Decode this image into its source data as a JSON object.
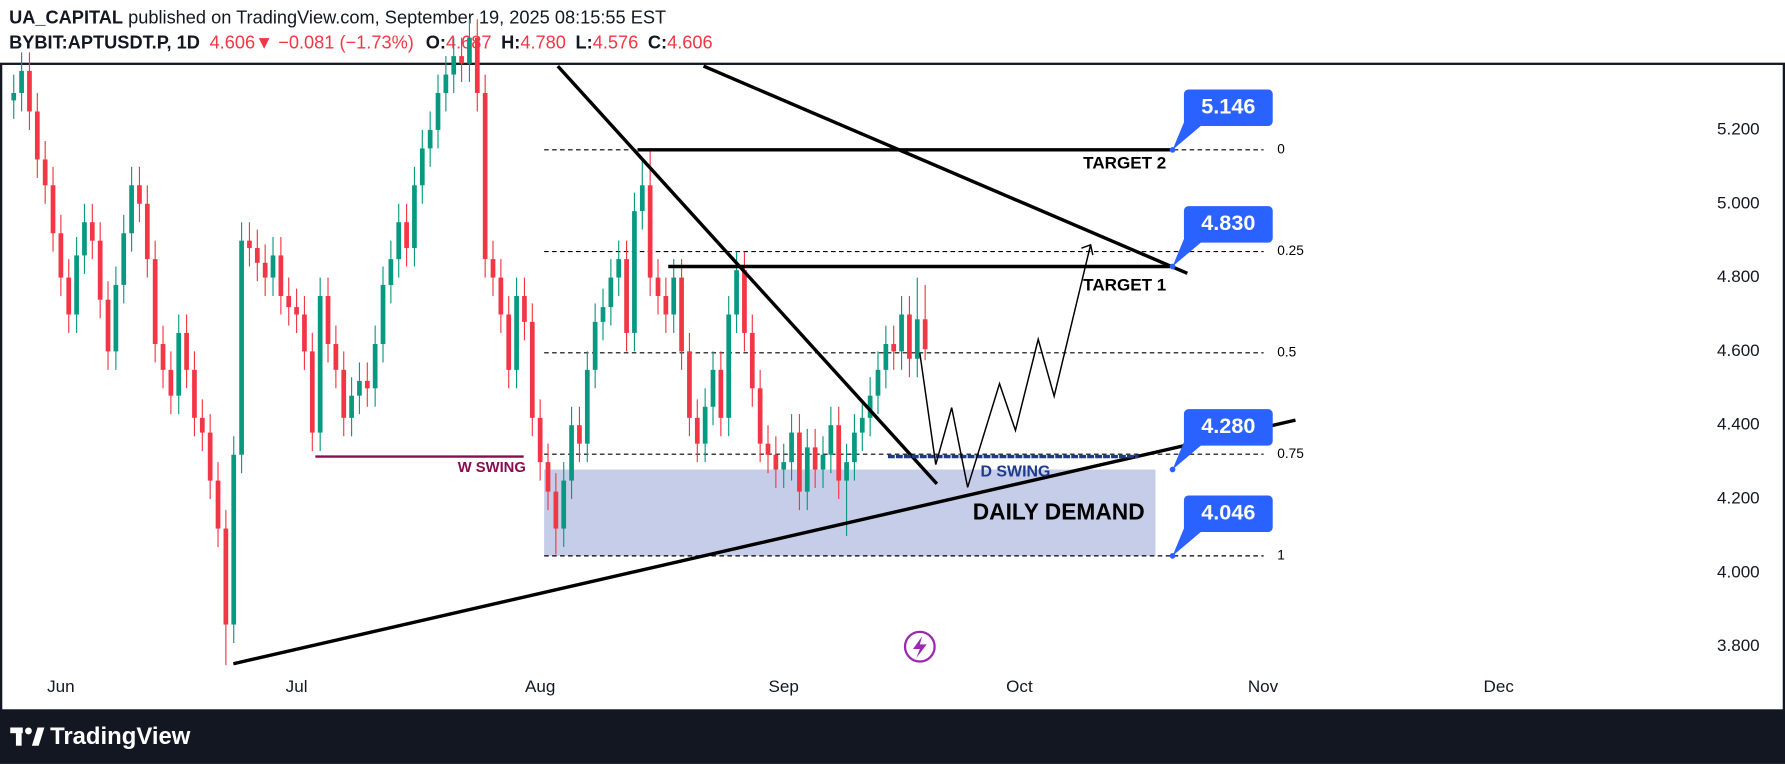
{
  "header": {
    "author": "UA_CAPITAL",
    "published": "published on TradingView.com, September 19, 2025 08:15:55 EST",
    "symbol": "BYBIT:APTUSDT.P, 1D",
    "last": "4.606",
    "arrow": "▼",
    "change": "−0.081 (−1.73%)",
    "ohlc": [
      {
        "label": "O:",
        "value": "4.687"
      },
      {
        "label": "H:",
        "value": "4.780"
      },
      {
        "label": "L:",
        "value": "4.576"
      },
      {
        "label": "C:",
        "value": "4.606"
      }
    ]
  },
  "chart_data": {
    "type": "candlestick",
    "up_color": "#089981",
    "down_color": "#f23645",
    "open": [
      5.28,
      5.3,
      5.36,
      5.25,
      5.12,
      5.05,
      4.92,
      4.8,
      4.7,
      4.86,
      4.95,
      4.9,
      4.74,
      4.6,
      4.78,
      4.92,
      5.05,
      5.0,
      4.85,
      4.62,
      4.55,
      4.48,
      4.65,
      4.55,
      4.42,
      4.38,
      4.25,
      4.12,
      3.86,
      4.32,
      4.9,
      4.88,
      4.84,
      4.8,
      4.86,
      4.75,
      4.72,
      4.7,
      4.6,
      4.38,
      4.75,
      4.62,
      4.55,
      4.42,
      4.48,
      4.52,
      4.5,
      4.62,
      4.78,
      4.85,
      4.95,
      4.88,
      5.05,
      5.15,
      5.2,
      5.3,
      5.35,
      5.4,
      5.38,
      5.45,
      5.3,
      4.85,
      4.8,
      4.7,
      4.55,
      4.75,
      4.68,
      4.42,
      4.3,
      4.22,
      4.12,
      4.25,
      4.4,
      4.35,
      4.55,
      4.68,
      4.72,
      4.8,
      4.85,
      4.65,
      4.98,
      5.05,
      4.8,
      4.75,
      4.7,
      4.8,
      4.6,
      4.42,
      4.35,
      4.45,
      4.55,
      4.42,
      4.7,
      4.82,
      4.65,
      4.5,
      4.35,
      4.32,
      4.28,
      4.3,
      4.38,
      4.22,
      4.34,
      4.28,
      4.32,
      4.4,
      4.25,
      4.3,
      4.38,
      4.42,
      4.48,
      4.55,
      4.62,
      4.6,
      4.7,
      4.58,
      4.687
    ],
    "high": [
      5.35,
      5.41,
      5.41,
      5.3,
      5.17,
      5.1,
      4.97,
      4.85,
      4.91,
      5.0,
      5.0,
      4.95,
      4.79,
      4.83,
      4.97,
      5.1,
      5.1,
      5.05,
      4.9,
      4.67,
      4.6,
      4.7,
      4.7,
      4.6,
      4.47,
      4.43,
      4.3,
      4.17,
      4.37,
      4.95,
      4.95,
      4.93,
      4.89,
      4.91,
      4.91,
      4.8,
      4.77,
      4.75,
      4.65,
      4.8,
      4.8,
      4.67,
      4.6,
      4.53,
      4.57,
      4.57,
      4.67,
      4.83,
      4.9,
      5.0,
      5.0,
      5.1,
      5.2,
      5.25,
      5.35,
      5.4,
      5.45,
      5.45,
      5.5,
      5.5,
      5.35,
      4.9,
      4.85,
      4.75,
      4.8,
      4.8,
      4.73,
      4.47,
      4.35,
      4.27,
      4.3,
      4.45,
      4.45,
      4.6,
      4.73,
      4.77,
      4.85,
      4.9,
      4.9,
      5.03,
      5.12,
      5.15,
      4.85,
      4.8,
      4.85,
      4.85,
      4.65,
      4.47,
      4.5,
      4.6,
      4.6,
      4.75,
      4.87,
      4.87,
      4.7,
      4.55,
      4.4,
      4.37,
      4.35,
      4.43,
      4.43,
      4.39,
      4.39,
      4.37,
      4.45,
      4.45,
      4.35,
      4.43,
      4.47,
      4.53,
      4.6,
      4.67,
      4.67,
      4.75,
      4.75,
      4.8,
      4.78
    ],
    "low": [
      5.23,
      5.25,
      5.2,
      5.07,
      5.0,
      4.87,
      4.75,
      4.65,
      4.65,
      4.81,
      4.85,
      4.69,
      4.55,
      4.55,
      4.73,
      4.87,
      4.95,
      4.8,
      4.57,
      4.5,
      4.43,
      4.43,
      4.5,
      4.37,
      4.33,
      4.2,
      4.07,
      3.75,
      3.81,
      4.27,
      4.83,
      4.79,
      4.75,
      4.75,
      4.7,
      4.67,
      4.65,
      4.55,
      4.33,
      4.33,
      4.57,
      4.5,
      4.37,
      4.37,
      4.43,
      4.45,
      4.45,
      4.57,
      4.73,
      4.8,
      4.83,
      4.83,
      5.0,
      5.1,
      5.15,
      5.25,
      5.3,
      5.33,
      5.33,
      5.25,
      4.8,
      4.75,
      4.65,
      4.5,
      4.5,
      4.63,
      4.37,
      4.25,
      4.17,
      4.05,
      4.07,
      4.2,
      4.3,
      4.3,
      4.5,
      4.63,
      4.67,
      4.75,
      4.6,
      4.6,
      4.93,
      4.75,
      4.7,
      4.65,
      4.65,
      4.55,
      4.37,
      4.3,
      4.3,
      4.4,
      4.37,
      4.37,
      4.65,
      4.6,
      4.45,
      4.3,
      4.27,
      4.23,
      4.23,
      4.25,
      4.17,
      4.17,
      4.23,
      4.23,
      4.27,
      4.2,
      4.1,
      4.25,
      4.33,
      4.37,
      4.43,
      4.5,
      4.55,
      4.55,
      4.53,
      4.53,
      4.576
    ],
    "close": [
      5.3,
      5.36,
      5.25,
      5.12,
      5.05,
      4.92,
      4.8,
      4.7,
      4.86,
      4.95,
      4.9,
      4.74,
      4.6,
      4.78,
      4.92,
      5.05,
      5.0,
      4.85,
      4.62,
      4.55,
      4.48,
      4.65,
      4.55,
      4.42,
      4.38,
      4.25,
      4.12,
      3.86,
      4.32,
      4.9,
      4.88,
      4.84,
      4.8,
      4.86,
      4.75,
      4.72,
      4.7,
      4.6,
      4.38,
      4.75,
      4.62,
      4.55,
      4.42,
      4.48,
      4.52,
      4.5,
      4.62,
      4.78,
      4.85,
      4.95,
      4.88,
      5.05,
      5.15,
      5.2,
      5.3,
      5.35,
      5.4,
      5.38,
      5.45,
      5.3,
      4.85,
      4.8,
      4.7,
      4.55,
      4.75,
      4.68,
      4.42,
      4.3,
      4.22,
      4.12,
      4.25,
      4.4,
      4.35,
      4.55,
      4.68,
      4.72,
      4.8,
      4.85,
      4.65,
      4.98,
      5.05,
      4.8,
      4.75,
      4.7,
      4.8,
      4.6,
      4.42,
      4.35,
      4.45,
      4.55,
      4.42,
      4.7,
      4.82,
      4.65,
      4.5,
      4.35,
      4.32,
      4.28,
      4.3,
      4.38,
      4.22,
      4.34,
      4.28,
      4.32,
      4.4,
      4.25,
      4.3,
      4.38,
      4.42,
      4.48,
      4.55,
      4.62,
      4.6,
      4.7,
      4.58,
      4.687,
      4.606
    ],
    "xlim": [
      -0.3,
      212.4
    ],
    "xticks": [
      {
        "value": 6,
        "label": "Jun"
      },
      {
        "value": 36,
        "label": "Jul"
      },
      {
        "value": 67,
        "label": "Aug"
      },
      {
        "value": 98,
        "label": "Sep"
      },
      {
        "value": 128,
        "label": "Oct"
      },
      {
        "value": 159,
        "label": "Nov"
      },
      {
        "value": 189,
        "label": "Dec"
      }
    ],
    "ylim": [
      3.726,
      5.376
    ],
    "yticks": [
      {
        "value": 3.8,
        "label": "3.800"
      },
      {
        "value": 4.0,
        "label": "4.000"
      },
      {
        "value": 4.2,
        "label": "4.200"
      },
      {
        "value": 4.4,
        "label": "4.400"
      },
      {
        "value": 4.6,
        "label": "4.600"
      },
      {
        "value": 4.8,
        "label": "4.800"
      },
      {
        "value": 5.0,
        "label": "5.000"
      },
      {
        "value": 5.2,
        "label": "5.200"
      }
    ],
    "fib_levels": [
      {
        "level": 0,
        "price": 5.146
      },
      {
        "level": 0.25,
        "price": 4.8705
      },
      {
        "level": 0.5,
        "price": 4.596
      },
      {
        "level": 0.75,
        "price": 4.3215
      },
      {
        "level": 1,
        "price": 4.046
      }
    ],
    "price_labels": [
      {
        "value": 5.146,
        "label": "5.146"
      },
      {
        "value": 4.83,
        "label": "4.830"
      },
      {
        "value": 4.28,
        "label": "4.280"
      },
      {
        "value": 4.046,
        "label": "4.046"
      }
    ],
    "annotations": [
      "TARGET 2",
      "TARGET 1",
      "W SWING",
      "D SWING",
      "DAILY DEMAND"
    ]
  },
  "footer": {
    "brand": "TradingView"
  }
}
